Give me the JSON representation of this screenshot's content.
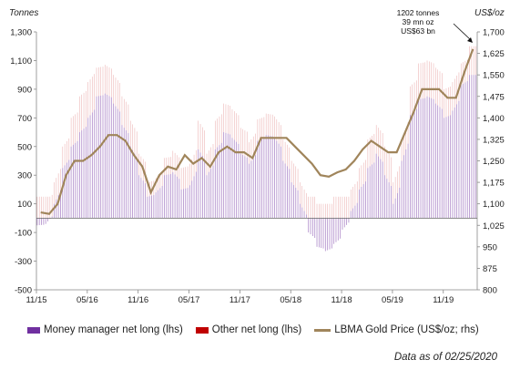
{
  "chart_data": {
    "type": "bar+line",
    "title": "",
    "y_left": {
      "label": "Tonnes",
      "min": -500,
      "max": 1300,
      "ticks": [
        -500,
        -300,
        -100,
        100,
        300,
        500,
        700,
        900,
        1100,
        1300
      ],
      "tick_labels": [
        "-500",
        "-300",
        "-100",
        "100",
        "300",
        "500",
        "700",
        "900",
        "1,100",
        "1,300"
      ]
    },
    "y_right": {
      "label": "US$/oz",
      "min": 800,
      "max": 1700,
      "ticks": [
        800,
        875,
        950,
        1025,
        1100,
        1175,
        1250,
        1325,
        1400,
        1475,
        1550,
        1625,
        1700
      ],
      "tick_labels": [
        "800",
        "875",
        "950",
        "1,025",
        "1,100",
        "1,175",
        "1,250",
        "1,325",
        "1,400",
        "1,475",
        "1,550",
        "1,625",
        "1,700"
      ]
    },
    "x_axis": {
      "start": "2015-11",
      "end": "2020-02",
      "tick_labels": [
        "11/15",
        "05/16",
        "11/16",
        "05/17",
        "11/17",
        "05/18",
        "11/18",
        "05/19",
        "11/19"
      ]
    },
    "series": [
      {
        "name": "Money manager net long (lhs)",
        "kind": "bar",
        "color": "#7030a0",
        "x": [
          "2015-11",
          "2015-12",
          "2016-01",
          "2016-02",
          "2016-03",
          "2016-04",
          "2016-05",
          "2016-06",
          "2016-07",
          "2016-08",
          "2016-09",
          "2016-10",
          "2016-11",
          "2016-12",
          "2017-01",
          "2017-02",
          "2017-03",
          "2017-04",
          "2017-05",
          "2017-06",
          "2017-07",
          "2017-08",
          "2017-09",
          "2017-10",
          "2017-11",
          "2017-12",
          "2018-01",
          "2018-02",
          "2018-03",
          "2018-04",
          "2018-05",
          "2018-06",
          "2018-07",
          "2018-08",
          "2018-09",
          "2018-10",
          "2018-11",
          "2018-12",
          "2019-01",
          "2019-02",
          "2019-03",
          "2019-04",
          "2019-05",
          "2019-06",
          "2019-07",
          "2019-08",
          "2019-09",
          "2019-10",
          "2019-11",
          "2019-12",
          "2020-01",
          "2020-02"
        ],
        "values": [
          -50,
          -40,
          100,
          350,
          500,
          600,
          700,
          850,
          870,
          800,
          650,
          500,
          300,
          150,
          180,
          300,
          320,
          200,
          230,
          480,
          300,
          480,
          600,
          560,
          450,
          380,
          540,
          580,
          560,
          400,
          250,
          100,
          -100,
          -200,
          -230,
          -180,
          -80,
          50,
          200,
          350,
          450,
          300,
          100,
          400,
          720,
          830,
          850,
          800,
          700,
          750,
          930,
          1000
        ]
      },
      {
        "name": "Other net long (lhs)",
        "kind": "bar",
        "color": "#c00000",
        "x": [
          "2015-11",
          "2015-12",
          "2016-01",
          "2016-02",
          "2016-03",
          "2016-04",
          "2016-05",
          "2016-06",
          "2016-07",
          "2016-08",
          "2016-09",
          "2016-10",
          "2016-11",
          "2016-12",
          "2017-01",
          "2017-02",
          "2017-03",
          "2017-04",
          "2017-05",
          "2017-06",
          "2017-07",
          "2017-08",
          "2017-09",
          "2017-10",
          "2017-11",
          "2017-12",
          "2018-01",
          "2018-02",
          "2018-03",
          "2018-04",
          "2018-05",
          "2018-06",
          "2018-07",
          "2018-08",
          "2018-09",
          "2018-10",
          "2018-11",
          "2018-12",
          "2019-01",
          "2019-02",
          "2019-03",
          "2019-04",
          "2019-05",
          "2019-06",
          "2019-07",
          "2019-08",
          "2019-09",
          "2019-10",
          "2019-11",
          "2019-12",
          "2020-01",
          "2020-02"
        ],
        "values": [
          150,
          150,
          150,
          150,
          200,
          250,
          250,
          200,
          200,
          200,
          200,
          180,
          150,
          100,
          100,
          120,
          150,
          150,
          150,
          200,
          150,
          200,
          200,
          200,
          180,
          150,
          150,
          150,
          150,
          150,
          150,
          150,
          150,
          100,
          100,
          150,
          150,
          150,
          150,
          200,
          200,
          200,
          150,
          150,
          200,
          250,
          250,
          250,
          200,
          200,
          150,
          200
        ]
      },
      {
        "name": "LBMA Gold Price (US$/oz; rhs)",
        "kind": "line",
        "color": "#a0855b",
        "x": [
          "2015-11",
          "2015-12",
          "2016-01",
          "2016-02",
          "2016-03",
          "2016-04",
          "2016-05",
          "2016-06",
          "2016-07",
          "2016-08",
          "2016-09",
          "2016-10",
          "2016-11",
          "2016-12",
          "2017-01",
          "2017-02",
          "2017-03",
          "2017-04",
          "2017-05",
          "2017-06",
          "2017-07",
          "2017-08",
          "2017-09",
          "2017-10",
          "2017-11",
          "2017-12",
          "2018-01",
          "2018-02",
          "2018-03",
          "2018-04",
          "2018-05",
          "2018-06",
          "2018-07",
          "2018-08",
          "2018-09",
          "2018-10",
          "2018-11",
          "2018-12",
          "2019-01",
          "2019-02",
          "2019-03",
          "2019-04",
          "2019-05",
          "2019-06",
          "2019-07",
          "2019-08",
          "2019-09",
          "2019-10",
          "2019-11",
          "2019-12",
          "2020-01",
          "2020-02"
        ],
        "values": [
          1070,
          1065,
          1100,
          1200,
          1250,
          1250,
          1270,
          1300,
          1340,
          1340,
          1320,
          1270,
          1230,
          1140,
          1200,
          1230,
          1220,
          1270,
          1240,
          1260,
          1230,
          1280,
          1300,
          1280,
          1280,
          1260,
          1330,
          1330,
          1330,
          1330,
          1300,
          1270,
          1240,
          1200,
          1195,
          1210,
          1220,
          1250,
          1290,
          1320,
          1300,
          1280,
          1280,
          1350,
          1420,
          1500,
          1500,
          1500,
          1470,
          1470,
          1560,
          1640
        ]
      }
    ],
    "annotation": {
      "lines": [
        "1202 tonnes",
        "39 mn  oz",
        "US$63 bn"
      ]
    },
    "grid": false,
    "legend_position": "bottom"
  },
  "footer": {
    "data_as_of": "Data as of 02/25/2020"
  }
}
